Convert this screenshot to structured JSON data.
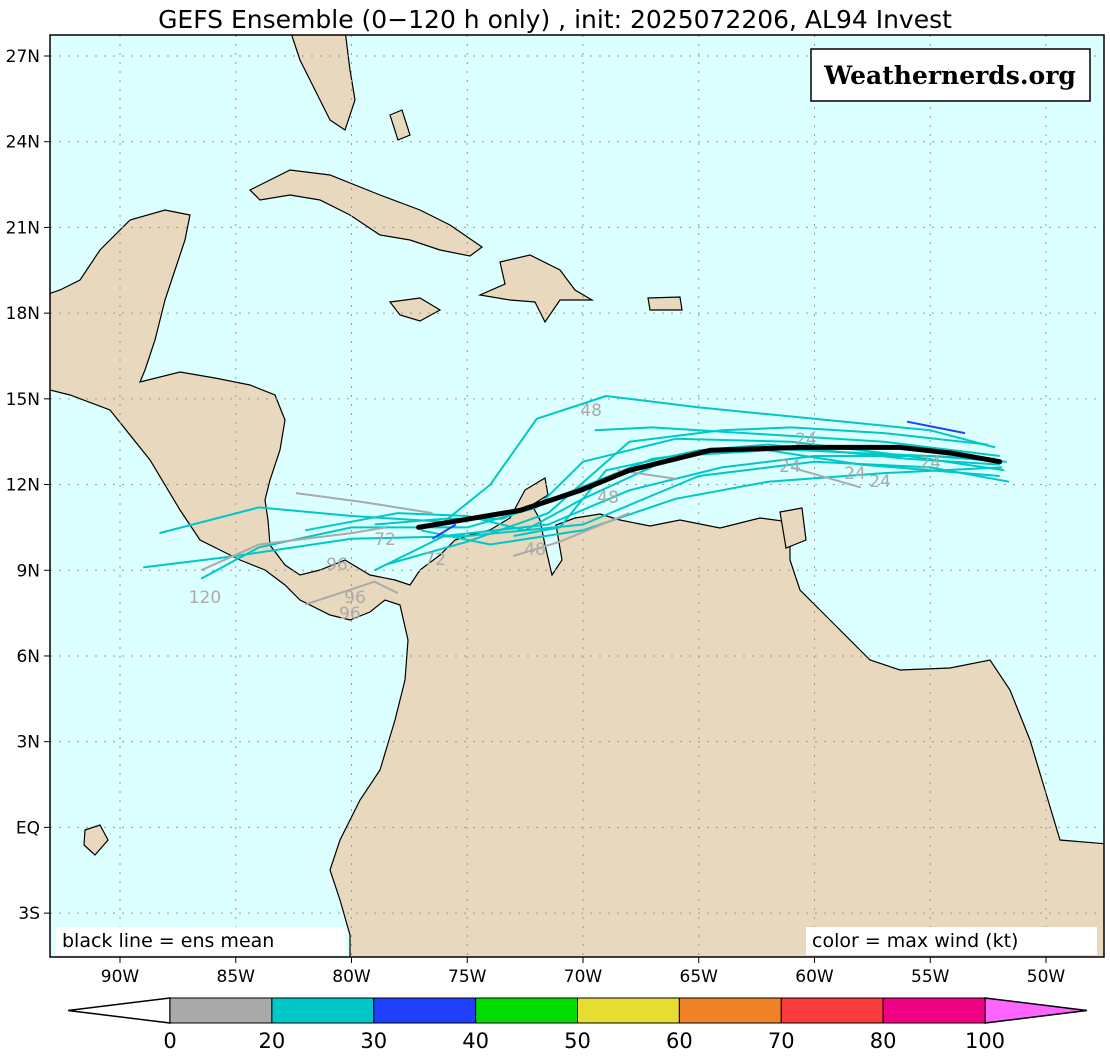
{
  "title": "GEFS Ensemble (0−120 h only) , init: 2025072206, AL94 Invest",
  "watermark": "Weathernerds.org",
  "legend_left": "black line = ens mean",
  "legend_right": "color = max wind (kt)",
  "colors": {
    "ocean": "#dcffff",
    "land": "#e8d8be",
    "mean_track": "#000000",
    "grid": "#999999"
  },
  "map": {
    "lat_labels": [
      "27N",
      "24N",
      "21N",
      "18N",
      "15N",
      "12N",
      "9N",
      "6N",
      "3N",
      "EQ",
      "3S"
    ],
    "lat_values": [
      27,
      24,
      21,
      18,
      15,
      12,
      9,
      6,
      3,
      0,
      -3
    ],
    "lon_labels": [
      "90W",
      "85W",
      "80W",
      "75W",
      "70W",
      "65W",
      "60W",
      "55W",
      "50W"
    ],
    "lon_values": [
      -90,
      -85,
      -80,
      -75,
      -70,
      -65,
      -60,
      -55,
      -50
    ]
  },
  "colorbar": {
    "labels": [
      "0",
      "20",
      "30",
      "40",
      "50",
      "60",
      "70",
      "80",
      "100"
    ],
    "colors": [
      "#aaaaaa",
      "#00c8c8",
      "#2040ff",
      "#00dc00",
      "#e6dc32",
      "#f08228",
      "#fa3c3c",
      "#f00082"
    ],
    "under_color": "#ffffff",
    "over_color": "#ff64ff"
  },
  "tracks": {
    "mean": [
      [
        -52.0,
        12.8
      ],
      [
        -54.1,
        13.1
      ],
      [
        -56.3,
        13.3
      ],
      [
        -60.6,
        13.3
      ],
      [
        -64.5,
        13.2
      ],
      [
        -68.0,
        12.5
      ],
      [
        -70.1,
        11.8
      ],
      [
        -72.7,
        11.1
      ],
      [
        -74.9,
        10.8
      ],
      [
        -77.1,
        10.5
      ]
    ],
    "members": [
      {
        "color": "#00c8c8",
        "points": [
          [
            -52.2,
            13.3
          ],
          [
            -55,
            13.9
          ],
          [
            -60,
            14.3
          ],
          [
            -65,
            14.7
          ],
          [
            -69,
            15.1
          ],
          [
            -72,
            14.3
          ],
          [
            -74,
            12.0
          ],
          [
            -76,
            10.7
          ],
          [
            -80,
            10.9
          ],
          [
            -84,
            11.2
          ],
          [
            -88.3,
            10.3
          ]
        ]
      },
      {
        "color": "#00c8c8",
        "points": [
          [
            -51.6,
            12.1
          ],
          [
            -55,
            12.6
          ],
          [
            -60,
            12.8
          ],
          [
            -65,
            12.3
          ],
          [
            -70,
            10.6
          ],
          [
            -75,
            10.2
          ],
          [
            -80,
            10.1
          ],
          [
            -85,
            9.5
          ],
          [
            -89,
            9.1
          ]
        ]
      },
      {
        "color": "#00c8c8",
        "points": [
          [
            -51.8,
            12.5
          ],
          [
            -56,
            13.0
          ],
          [
            -61,
            13.5
          ],
          [
            -66,
            13.6
          ],
          [
            -70,
            12.8
          ],
          [
            -72,
            11.2
          ],
          [
            -75,
            10.5
          ],
          [
            -80,
            10.5
          ],
          [
            -84,
            9.8
          ],
          [
            -86.5,
            8.7
          ]
        ]
      },
      {
        "color": "#00c8c8",
        "points": [
          [
            -52,
            13.0
          ],
          [
            -57,
            13.5
          ],
          [
            -63,
            13.8
          ],
          [
            -67,
            14.0
          ],
          [
            -69.5,
            13.9
          ]
        ]
      },
      {
        "color": "#00c8c8",
        "points": [
          [
            -51.7,
            12.8
          ],
          [
            -55,
            13.0
          ],
          [
            -60,
            13.0
          ],
          [
            -64,
            12.6
          ],
          [
            -68,
            11.8
          ],
          [
            -71.5,
            10.6
          ],
          [
            -76,
            10.2
          ],
          [
            -79,
            9.0
          ]
        ]
      },
      {
        "color": "#00c8c8",
        "points": [
          [
            -52,
            12.3
          ],
          [
            -58,
            12.7
          ],
          [
            -62,
            13.2
          ],
          [
            -66,
            13.0
          ],
          [
            -70,
            11.5
          ],
          [
            -72.5,
            10.4
          ],
          [
            -75,
            10.9
          ],
          [
            -78,
            11.0
          ],
          [
            -82,
            10.4
          ]
        ]
      },
      {
        "color": "#00c8c8",
        "points": [
          [
            -52.5,
            13.4
          ],
          [
            -57,
            13.8
          ],
          [
            -61,
            14.0
          ],
          [
            -64,
            13.9
          ],
          [
            -68,
            13.5
          ],
          [
            -71.5,
            11.0
          ],
          [
            -75,
            10.0
          ],
          [
            -78.5,
            9.2
          ]
        ]
      },
      {
        "color": "#00c8c8",
        "points": [
          [
            -52,
            12.7
          ],
          [
            -56,
            12.9
          ],
          [
            -62,
            13.4
          ],
          [
            -65,
            13.2
          ],
          [
            -69,
            12.5
          ],
          [
            -71,
            10.5
          ],
          [
            -73,
            10.2
          ]
        ]
      },
      {
        "color": "#00c8c8",
        "points": [
          [
            -52.2,
            12.9
          ],
          [
            -58,
            13.1
          ],
          [
            -63,
            13.3
          ],
          [
            -67,
            12.9
          ],
          [
            -71,
            11.6
          ],
          [
            -73.5,
            10.8
          ],
          [
            -76,
            10.8
          ],
          [
            -79,
            10.6
          ]
        ]
      },
      {
        "color": "#00c8c8",
        "points": [
          [
            -51.9,
            12.6
          ],
          [
            -57,
            12.4
          ],
          [
            -62,
            12.1
          ],
          [
            -66,
            11.5
          ],
          [
            -70,
            10.4
          ],
          [
            -74,
            9.9
          ],
          [
            -77,
            10.4
          ]
        ]
      },
      {
        "color": "#aaaaaa",
        "points": [
          [
            -58,
            11.9
          ],
          [
            -61,
            12.6
          ]
        ]
      },
      {
        "color": "#aaaaaa",
        "points": [
          [
            -66,
            12.2
          ],
          [
            -68.5,
            12.5
          ]
        ]
      },
      {
        "color": "#aaaaaa",
        "points": [
          [
            -68,
            11.0
          ],
          [
            -71,
            10.0
          ],
          [
            -73,
            9.5
          ]
        ]
      },
      {
        "color": "#aaaaaa",
        "points": [
          [
            -82.4,
            11.7
          ],
          [
            -79.6,
            11.4
          ],
          [
            -76.5,
            11.0
          ]
        ]
      },
      {
        "color": "#aaaaaa",
        "points": [
          [
            -86.5,
            9.0
          ],
          [
            -84,
            9.9
          ],
          [
            -80,
            10.3
          ],
          [
            -78.5,
            10.5
          ]
        ]
      },
      {
        "color": "#aaaaaa",
        "points": [
          [
            -82,
            7.8
          ],
          [
            -79,
            8.6
          ],
          [
            -78,
            8.2
          ]
        ]
      },
      {
        "color": "#2040ff",
        "points": [
          [
            -56,
            14.2
          ],
          [
            -53.5,
            13.8
          ]
        ]
      },
      {
        "color": "#2040ff",
        "points": [
          [
            -76.5,
            10.1
          ],
          [
            -75.5,
            10.6
          ]
        ]
      }
    ],
    "lead_labels": [
      {
        "text": "48",
        "lon": -69.65,
        "lat": 14.64
      },
      {
        "text": "24",
        "lon": -60.37,
        "lat": 13.63
      },
      {
        "text": "24",
        "lon": -61.06,
        "lat": 12.68
      },
      {
        "text": "24",
        "lon": -58.25,
        "lat": 12.44
      },
      {
        "text": "24",
        "lon": -57.17,
        "lat": 12.16
      },
      {
        "text": "24",
        "lon": -55.0,
        "lat": 12.8
      },
      {
        "text": "48",
        "lon": -68.92,
        "lat": 11.6
      },
      {
        "text": "48",
        "lon": -72.07,
        "lat": 9.78
      },
      {
        "text": "72",
        "lon": -76.39,
        "lat": 9.43
      },
      {
        "text": "72",
        "lon": -78.55,
        "lat": 10.13
      },
      {
        "text": "96",
        "lon": -80.63,
        "lat": 9.25
      },
      {
        "text": "96",
        "lon": -79.85,
        "lat": 8.1
      },
      {
        "text": "96",
        "lon": -80.07,
        "lat": 7.54
      },
      {
        "text": "120",
        "lon": -86.33,
        "lat": 8.1
      }
    ]
  }
}
